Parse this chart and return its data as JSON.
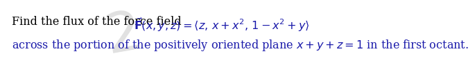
{
  "line1": "Find the flux of the force field",
  "line2": "$\\vec{\\mathbf{F}}(x, y, z) = \\langle z,\\, x + x^2,\\, 1 - x^2 + y \\rangle$",
  "line3": "across the portion of the positively oriented plane $x + y + z = 1$ in the first octant.",
  "text_color": "#1a1aaa",
  "line1_color": "#000000",
  "background_color": "#ffffff",
  "fontsize": 11.5,
  "watermark_color": "#c8c8c8"
}
